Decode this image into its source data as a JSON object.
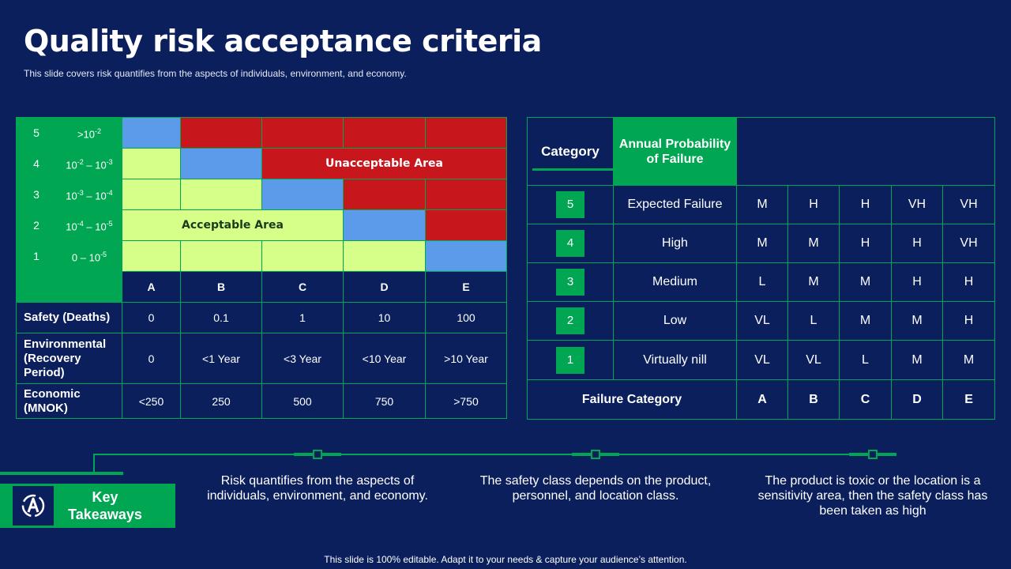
{
  "title": "Quality risk acceptance criteria",
  "subtitle": "This slide covers risk quantifies from the aspects of individuals, environment, and economy.",
  "left_matrix": {
    "rows": [
      {
        "num": "5",
        "prob": ">10",
        "sup": "-2"
      },
      {
        "num": "4",
        "prob_a": "10",
        "sup_a": "-2",
        "prob_b": " – 10",
        "sup_b": "-3"
      },
      {
        "num": "3",
        "prob_a": "10",
        "sup_a": "-3",
        "prob_b": " – 10",
        "sup_b": "-4"
      },
      {
        "num": "2",
        "prob_a": "10",
        "sup_a": "-4",
        "prob_b": " – 10",
        "sup_b": "-5"
      },
      {
        "num": "1",
        "prob": "0 – 10",
        "sup": "-5"
      }
    ],
    "unacceptable_label": "Unacceptable Area",
    "acceptable_label": "Acceptable Area",
    "columns": [
      "A",
      "B",
      "C",
      "D",
      "E"
    ],
    "criteria": [
      {
        "label": "Safety (Deaths)",
        "values": [
          "0",
          "0.1",
          "1",
          "10",
          "100"
        ]
      },
      {
        "label": "Environmental (Recovery Period)",
        "values": [
          "0",
          "<1 Year",
          "<3 Year",
          "<10 Year",
          ">10 Year"
        ]
      },
      {
        "label": "Economic (MNOK)",
        "values": [
          "<250",
          "250",
          "500",
          "750",
          ">750"
        ]
      }
    ]
  },
  "right_table": {
    "header_category": "Category",
    "header_probability": "Annual Probability of Failure",
    "rows": [
      {
        "num": "5",
        "label": "Expected Failure",
        "values": [
          "M",
          "H",
          "H",
          "VH",
          "VH"
        ]
      },
      {
        "num": "4",
        "label": "High",
        "values": [
          "M",
          "M",
          "H",
          "H",
          "VH"
        ]
      },
      {
        "num": "3",
        "label": "Medium",
        "values": [
          "L",
          "M",
          "M",
          "H",
          "H"
        ]
      },
      {
        "num": "2",
        "label": "Low",
        "values": [
          "VL",
          "L",
          "M",
          "M",
          "H"
        ]
      },
      {
        "num": "1",
        "label": "Virtually nill",
        "values": [
          "VL",
          "VL",
          "L",
          "M",
          "M"
        ]
      }
    ],
    "footer_label": "Failure Category",
    "footer_values": [
      "A",
      "B",
      "C",
      "D",
      "E"
    ]
  },
  "key_takeaways": {
    "label": "Key Takeaways",
    "items": [
      "Risk quantifies from the aspects of individuals, environment,  and economy.",
      "The safety class depends on the product, personnel, and location class.",
      "The product is toxic or the location is a sensitivity area, then the safety class has been taken as high"
    ]
  },
  "footer": "This slide is 100% editable. Adapt it to your needs & capture your audience’s attention.",
  "colors": {
    "background": "#0b1f5c",
    "green": "#00a651",
    "red": "#c8161d",
    "blue": "#5b9bea",
    "light_green": "#d5ff89"
  }
}
